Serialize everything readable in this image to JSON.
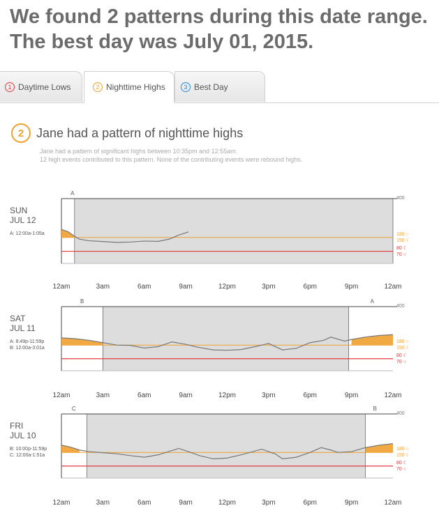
{
  "headline": {
    "line1": "We found 2 patterns during this date range.",
    "line2": "The best day was July 01, 2015."
  },
  "tabs": [
    {
      "num": "1",
      "label": "Daytime Lows",
      "color": "#d93b3b",
      "active": false
    },
    {
      "num": "2",
      "label": "Nighttime Highs",
      "color": "#f0a030",
      "active": true
    },
    {
      "num": "3",
      "label": "Best Day",
      "color": "#2a8ad4",
      "active": false
    }
  ],
  "section": {
    "number": "2",
    "title": "Jane had a pattern of nighttime highs",
    "desc_line1": "Jane had a pattern of significant highs between 10:35pm and 12:55am.",
    "desc_line2": "12 high events contributed to this pattern. None of the contributing events were rebound highs."
  },
  "x_ticks": [
    "12am",
    "3am",
    "6am",
    "9am",
    "12pm",
    "3pm",
    "6pm",
    "9pm",
    "12am"
  ],
  "y_labels": {
    "max": "400",
    "hi1": "180",
    "hi2": "150",
    "lo1": "80",
    "lo2": "70"
  },
  "colors": {
    "high": "#f0a030",
    "low": "#e03c3c",
    "pattern": "#ddd",
    "trace": "#777"
  },
  "days": [
    {
      "day": "SUN",
      "date": "JUL 12",
      "ranges": [
        "A: 12:00a-1:05a"
      ],
      "segments": [
        {
          "label": "A",
          "hour": 0.8
        }
      ],
      "pattern": [
        [
          0.95,
          24
        ]
      ],
      "trace": [
        [
          0,
          210
        ],
        [
          0.5,
          195
        ],
        [
          0.9,
          170
        ],
        [
          1.3,
          150
        ],
        [
          2,
          140
        ],
        [
          3,
          135
        ],
        [
          4,
          130
        ],
        [
          5,
          132
        ],
        [
          6,
          138
        ],
        [
          7,
          136
        ],
        [
          7.8,
          150
        ],
        [
          8.5,
          175
        ],
        [
          9.2,
          195
        ]
      ]
    },
    {
      "day": "SAT",
      "date": "JUL 11",
      "ranges": [
        "A: 8:49p-11:59p",
        "B: 12:00a-3:01a"
      ],
      "segments": [
        {
          "label": "B",
          "hour": 1.5
        },
        {
          "label": "A",
          "hour": 22.5
        }
      ],
      "pattern": [
        [
          3.0,
          20.8
        ]
      ],
      "trace": [
        [
          0,
          205
        ],
        [
          1,
          200
        ],
        [
          2,
          190
        ],
        [
          3,
          175
        ],
        [
          4,
          160
        ],
        [
          5,
          158
        ],
        [
          6,
          142
        ],
        [
          7,
          150
        ],
        [
          8,
          180
        ],
        [
          9,
          165
        ],
        [
          9.8,
          148
        ],
        [
          11,
          130
        ],
        [
          12,
          128
        ],
        [
          13,
          132
        ],
        [
          14,
          150
        ],
        [
          15,
          170
        ],
        [
          16,
          130
        ],
        [
          17,
          140
        ],
        [
          18,
          175
        ],
        [
          19,
          190
        ],
        [
          19.5,
          210
        ],
        [
          20.5,
          185
        ],
        [
          21,
          195
        ],
        [
          22,
          210
        ],
        [
          23,
          220
        ],
        [
          24,
          225
        ]
      ]
    },
    {
      "day": "FRI",
      "date": "JUL 10",
      "ranges": [
        "B: 10:00p-11:59p",
        "C: 12:00a-1:51a"
      ],
      "segments": [
        {
          "label": "C",
          "hour": 0.9
        },
        {
          "label": "B",
          "hour": 22.7
        }
      ],
      "pattern": [
        [
          1.85,
          22.0
        ]
      ],
      "trace": [
        [
          0,
          205
        ],
        [
          0.6,
          195
        ],
        [
          1.3,
          175
        ],
        [
          2,
          165
        ],
        [
          3,
          158
        ],
        [
          4,
          152
        ],
        [
          5,
          140
        ],
        [
          6,
          130
        ],
        [
          7,
          145
        ],
        [
          8.5,
          185
        ],
        [
          9.2,
          165
        ],
        [
          10,
          140
        ],
        [
          11,
          120
        ],
        [
          12,
          125
        ],
        [
          13,
          145
        ],
        [
          14.5,
          180
        ],
        [
          15.5,
          150
        ],
        [
          16,
          120
        ],
        [
          17,
          130
        ],
        [
          18,
          160
        ],
        [
          18.8,
          190
        ],
        [
          19.5,
          175
        ],
        [
          20,
          160
        ],
        [
          21,
          165
        ],
        [
          22,
          190
        ],
        [
          23,
          205
        ],
        [
          24,
          215
        ]
      ]
    }
  ]
}
